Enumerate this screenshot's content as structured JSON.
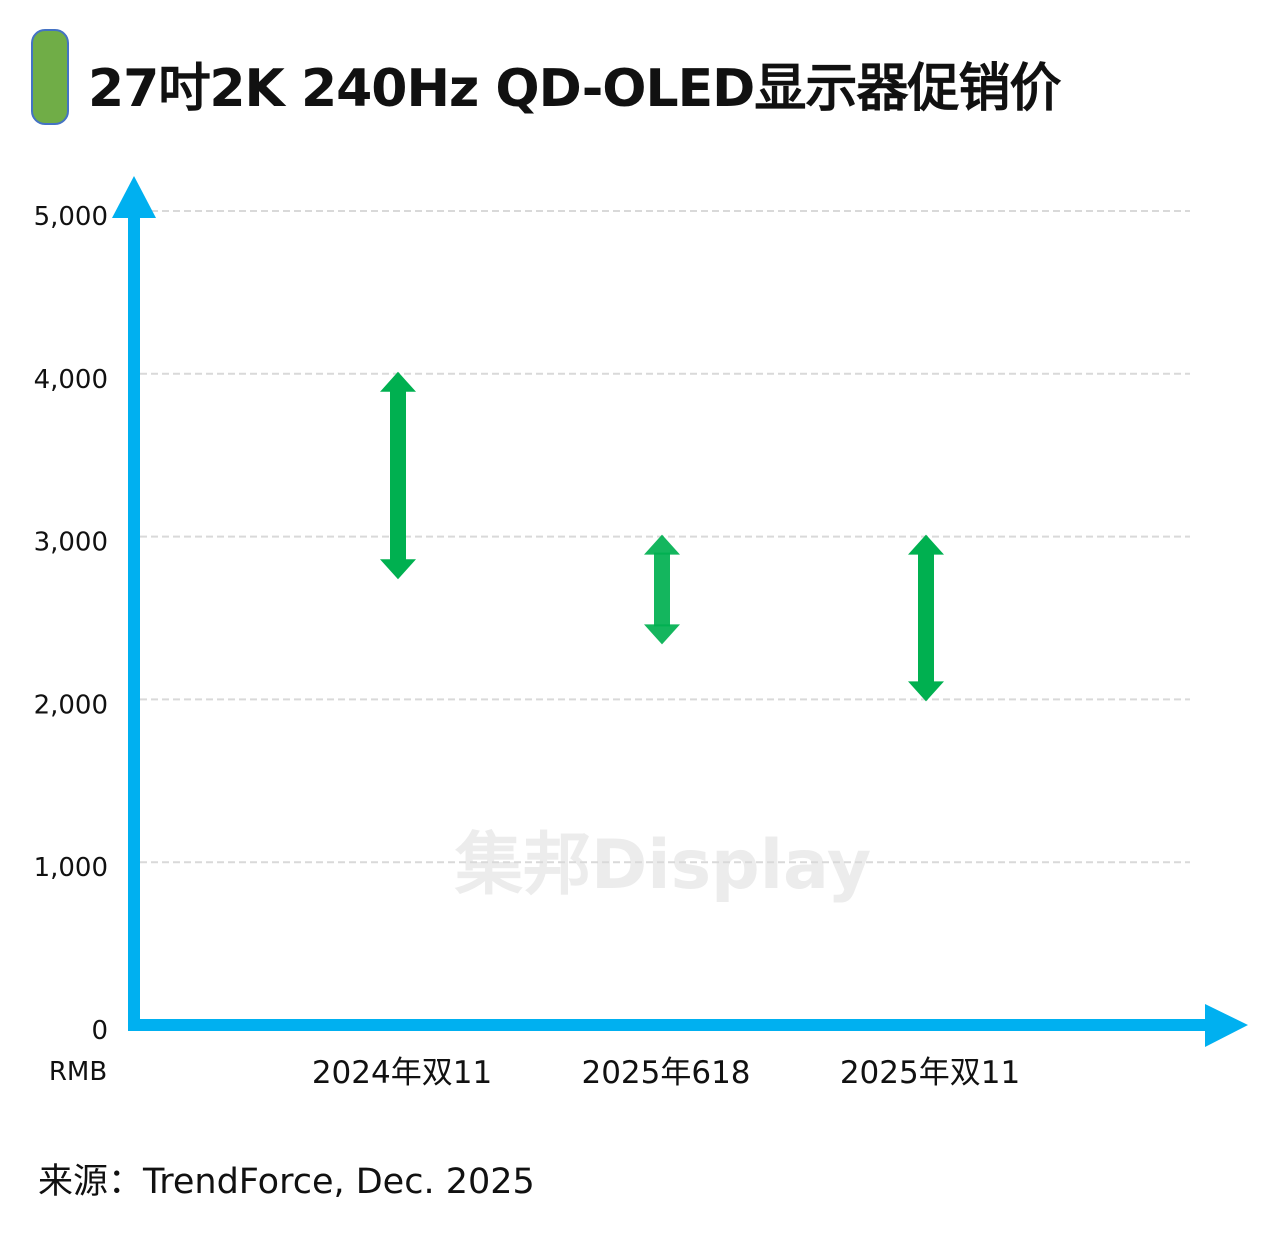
{
  "title": "27吋2K 240Hz QD-OLED显示器促销价",
  "source": "来源：TrendForce, Dec. 2025",
  "watermark": "集邦Display",
  "colors": {
    "axis": "#00b0f0",
    "arrow": "#00b050",
    "grid": "#d9d9d9",
    "title_marker": "#70ad47"
  },
  "chart_data": {
    "type": "range",
    "title": "27吋2K 240Hz QD-OLED显示器促销价",
    "unit_label": "RMB",
    "categories": [
      "2024年双11",
      "2025年618",
      "2025年双11"
    ],
    "series": [
      {
        "low": [
          2750,
          2350,
          2000
        ],
        "high": [
          4000,
          3000,
          3000
        ]
      }
    ],
    "ylim": [
      0,
      5000
    ],
    "yticks": [
      0,
      1000,
      2000,
      3000,
      4000,
      5000
    ],
    "ytick_labels": [
      "0",
      "1,000",
      "2,000",
      "3,000",
      "4,000",
      "5,000"
    ],
    "grid": true,
    "legend": "none"
  }
}
